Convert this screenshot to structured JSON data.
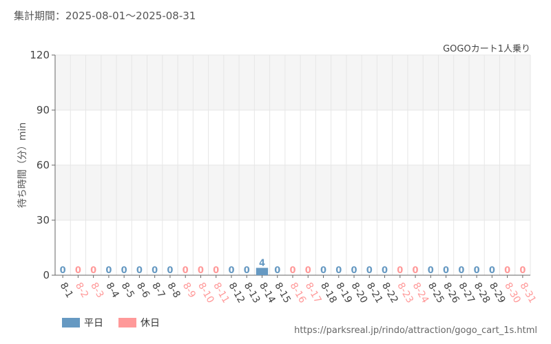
{
  "header": {
    "period_label": "集計期間：2025-08-01～2025-08-31",
    "series_title": "GOGOカート1人乗り"
  },
  "source_url": "https://parksreal.jp/rindo/attraction/gogo_cart_1s.html",
  "colors": {
    "weekday": "#6699c2",
    "holiday": "#ff9999",
    "grid": "#e6e6e6",
    "band": "#f5f5f5",
    "axis": "#666666"
  },
  "chart_data": {
    "type": "bar",
    "ylabel": "待ち時間（分）min",
    "ylim": [
      0,
      120
    ],
    "yticks": [
      0,
      30,
      60,
      90,
      120
    ],
    "categories": [
      "8-1",
      "8-2",
      "8-3",
      "8-4",
      "8-5",
      "8-6",
      "8-7",
      "8-8",
      "8-9",
      "8-10",
      "8-11",
      "8-12",
      "8-13",
      "8-14",
      "8-15",
      "8-16",
      "8-17",
      "8-18",
      "8-19",
      "8-20",
      "8-21",
      "8-22",
      "8-23",
      "8-24",
      "8-25",
      "8-26",
      "8-27",
      "8-28",
      "8-29",
      "8-30",
      "8-31"
    ],
    "values": [
      0,
      0,
      0,
      0,
      0,
      0,
      0,
      0,
      0,
      0,
      0,
      0,
      0,
      4,
      0,
      0,
      0,
      0,
      0,
      0,
      0,
      0,
      0,
      0,
      0,
      0,
      0,
      0,
      0,
      0,
      0
    ],
    "day_type": [
      "weekday",
      "holiday",
      "holiday",
      "weekday",
      "weekday",
      "weekday",
      "weekday",
      "weekday",
      "holiday",
      "holiday",
      "holiday",
      "weekday",
      "weekday",
      "weekday",
      "weekday",
      "holiday",
      "holiday",
      "weekday",
      "weekday",
      "weekday",
      "weekday",
      "weekday",
      "holiday",
      "holiday",
      "weekday",
      "weekday",
      "weekday",
      "weekday",
      "weekday",
      "holiday",
      "holiday"
    ],
    "legend": [
      {
        "key": "weekday",
        "label": "平日"
      },
      {
        "key": "holiday",
        "label": "休日"
      }
    ],
    "legend_position": "bottom-left"
  }
}
